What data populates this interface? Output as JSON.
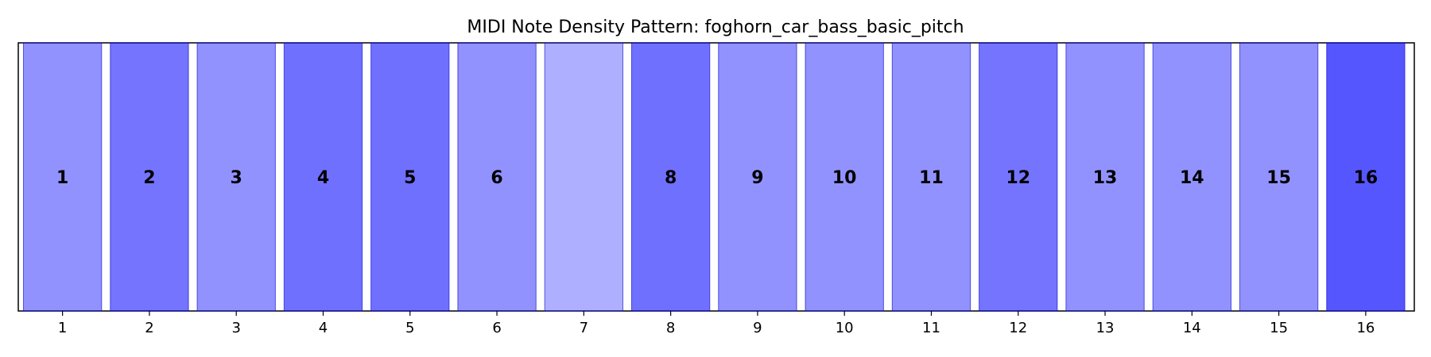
{
  "chart_data": {
    "type": "bar",
    "title": "MIDI Note Density Pattern: foghorn_car_bass_basic_pitch",
    "xlabel": "",
    "ylabel": "",
    "categories": [
      "1",
      "2",
      "3",
      "4",
      "5",
      "6",
      "7",
      "8",
      "9",
      "10",
      "11",
      "12",
      "13",
      "14",
      "15",
      "16"
    ],
    "values": [
      1,
      1,
      1,
      1,
      1,
      1,
      1,
      1,
      1,
      1,
      1,
      1,
      1,
      1,
      1,
      1
    ],
    "density": [
      0.55,
      0.7,
      0.55,
      0.72,
      0.72,
      0.55,
      0.4,
      0.72,
      0.55,
      0.55,
      0.55,
      0.7,
      0.55,
      0.55,
      0.55,
      0.85
    ],
    "bar_labels": [
      "1",
      "2",
      "3",
      "4",
      "5",
      "6",
      "",
      "8",
      "9",
      "10",
      "11",
      "12",
      "13",
      "14",
      "15",
      "16"
    ],
    "ylim": [
      0,
      1
    ],
    "grid": false,
    "colors": {
      "base": "#0000ff",
      "edge": "#0000cc",
      "background": "#ffffff",
      "axis": "#000000"
    }
  }
}
